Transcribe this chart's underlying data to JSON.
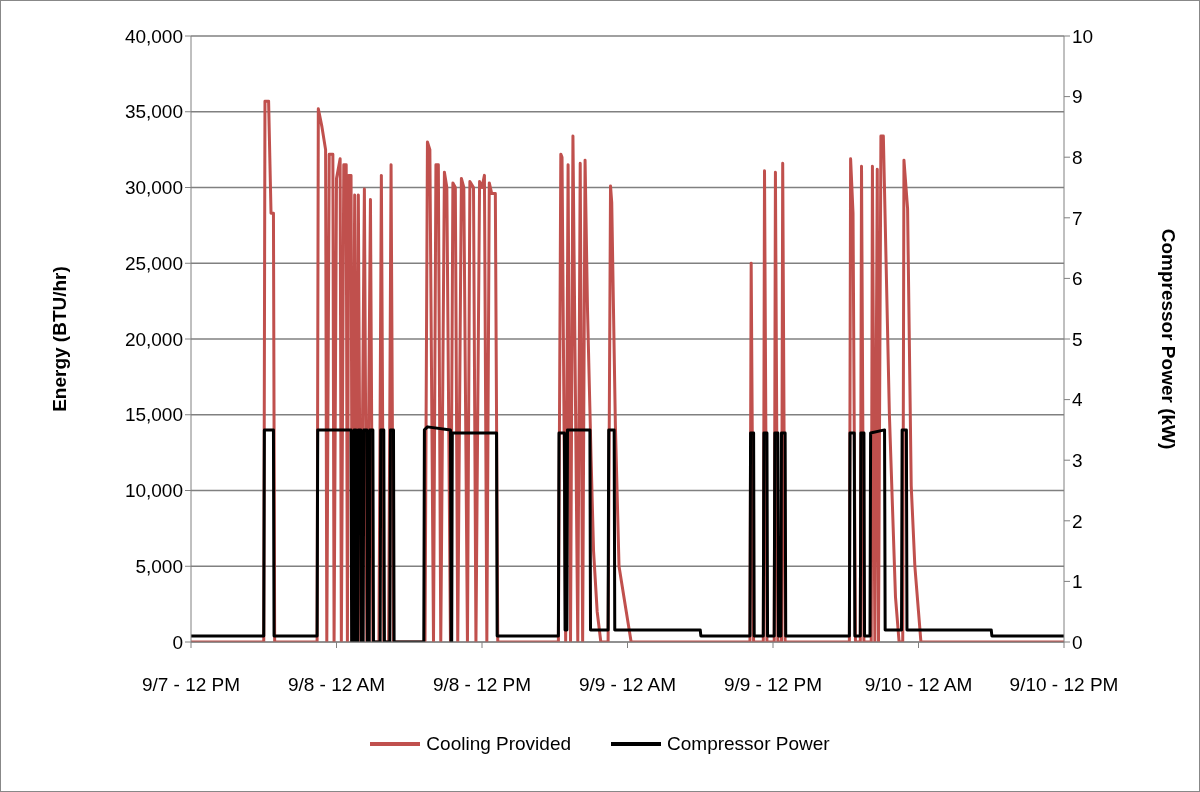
{
  "chart_data": {
    "type": "line",
    "ylabel": "Energy (BTU/hr)",
    "y2label": "Compressor Power (kW)",
    "xlim": [
      "--09-07T12:00",
      "--09-10T12:00"
    ],
    "xticks": [
      {
        "value": "--09-07T12:00",
        "label": "9/7 - 12 PM"
      },
      {
        "value": "--09-08T00:00",
        "label": "9/8 - 12 AM"
      },
      {
        "value": "--09-08T12:00",
        "label": "9/8 - 12 PM"
      },
      {
        "value": "--09-09T00:00",
        "label": "9/9 - 12 AM"
      },
      {
        "value": "--09-09T12:00",
        "label": "9/9 - 12 PM"
      },
      {
        "value": "--09-10T00:00",
        "label": "9/10 - 12 AM"
      },
      {
        "value": "--09-10T12:00",
        "label": "9/10 - 12 PM"
      }
    ],
    "ylim": [
      0,
      40000
    ],
    "yticks": [
      0,
      {
        "value": 5000,
        "label": "5,000"
      },
      {
        "value": 10000,
        "label": "10,000"
      },
      {
        "value": 15000,
        "label": "15,000"
      },
      {
        "value": 20000,
        "label": "20,000"
      },
      {
        "value": 25000,
        "label": "25,000"
      },
      {
        "value": 30000,
        "label": "30,000"
      },
      {
        "value": 35000,
        "label": "35,000"
      },
      {
        "value": 40000,
        "label": "40,000"
      }
    ],
    "y2lim": [
      0,
      10
    ],
    "y2ticks": [
      0,
      1,
      2,
      3,
      4,
      5,
      6,
      7,
      8,
      9,
      10
    ],
    "grid": "y",
    "legend": "bottom",
    "series": [
      {
        "name": "Cooling Provided",
        "color": "#c0504d",
        "x": [
          "--09-07T12:00",
          "--09-07T18:00",
          "--09-07T18:06",
          "--09-07T18:24",
          "--09-07T18:36",
          "--09-07T18:48",
          "--09-07T18:54",
          "--09-07T22:24",
          "--09-07T22:30",
          "--09-07T22:48",
          "--09-07T23:06",
          "--09-07T23:12",
          "--09-07T23:24",
          "--09-07T23:42",
          "--09-07T23:48",
          "--09-08T00:00",
          "--09-08T00:18",
          "--09-08T00:24",
          "--09-08T00:36",
          "--09-08T00:48",
          "--09-08T00:54",
          "--09-08T01:00",
          "--09-08T01:12",
          "--09-08T01:18",
          "--09-08T01:30",
          "--09-08T01:36",
          "--09-08T01:48",
          "--09-08T02:00",
          "--09-08T02:18",
          "--09-08T02:30",
          "--09-08T02:48",
          "--09-08T03:00",
          "--09-08T03:30",
          "--09-08T03:42",
          "--09-08T03:54",
          "--09-08T04:18",
          "--09-08T04:30",
          "--09-08T04:42",
          "--09-08T07:18",
          "--09-08T07:30",
          "--09-08T07:42",
          "--09-08T08:00",
          "--09-08T08:12",
          "--09-08T08:24",
          "--09-08T08:36",
          "--09-08T08:54",
          "--09-08T09:06",
          "--09-08T09:24",
          "--09-08T09:36",
          "--09-08T09:48",
          "--09-08T10:00",
          "--09-08T10:18",
          "--09-08T10:30",
          "--09-08T10:48",
          "--09-08T11:00",
          "--09-08T11:18",
          "--09-08T11:30",
          "--09-08T11:48",
          "--09-08T12:00",
          "--09-08T12:12",
          "--09-08T12:24",
          "--09-08T12:36",
          "--09-08T12:48",
          "--09-08T13:06",
          "--09-08T13:18",
          "--09-08T18:18",
          "--09-08T18:30",
          "--09-08T18:36",
          "--09-08T18:54",
          "--09-08T19:06",
          "--09-08T19:18",
          "--09-08T19:30",
          "--09-08T19:54",
          "--09-08T20:06",
          "--09-08T20:18",
          "--09-08T20:30",
          "--09-08T20:42",
          "--09-08T21:00",
          "--09-08T21:12",
          "--09-08T21:30",
          "--09-08T21:48",
          "--09-08T22:24",
          "--09-08T22:36",
          "--09-08T22:42",
          "--09-08T23:00",
          "--09-08T23:18",
          "--09-08T23:54",
          "--09-09T00:18",
          "--09-09T10:06",
          "--09-09T10:12",
          "--09-09T10:24",
          "--09-09T11:12",
          "--09-09T11:18",
          "--09-09T11:30",
          "--09-09T12:06",
          "--09-09T12:12",
          "--09-09T12:24",
          "--09-09T12:42",
          "--09-09T12:48",
          "--09-09T13:00",
          "--09-09T18:18",
          "--09-09T18:24",
          "--09-09T18:36",
          "--09-09T18:48",
          "--09-09T19:12",
          "--09-09T19:18",
          "--09-09T19:30",
          "--09-09T20:06",
          "--09-09T20:12",
          "--09-09T20:24",
          "--09-09T20:36",
          "--09-09T20:42",
          "--09-09T20:54",
          "--09-09T21:06",
          "--09-09T21:36",
          "--09-09T22:06",
          "--09-09T22:24",
          "--09-09T22:42",
          "--09-09T22:48",
          "--09-09T23:06",
          "--09-09T23:24",
          "--09-09T23:42",
          "--09-10T00:00",
          "--09-10T00:12",
          "--09-10T12:00"
        ],
        "values": [
          0,
          0,
          35700,
          35700,
          28300,
          28300,
          0,
          0,
          35200,
          34000,
          32500,
          0,
          32200,
          32200,
          0,
          30600,
          31900,
          0,
          31500,
          31500,
          0,
          30800,
          30800,
          0,
          29500,
          0,
          29500,
          0,
          29900,
          0,
          29200,
          0,
          0,
          30800,
          0,
          0,
          31500,
          0,
          0,
          33000,
          32500,
          0,
          31500,
          31500,
          0,
          31000,
          30000,
          0,
          30300,
          30000,
          0,
          30600,
          30000,
          0,
          30400,
          30000,
          0,
          30400,
          30000,
          30800,
          0,
          30300,
          29600,
          29600,
          0,
          0,
          32200,
          32000,
          0,
          31500,
          0,
          33400,
          0,
          31600,
          0,
          31800,
          22000,
          12000,
          6000,
          2000,
          0,
          0,
          30100,
          29000,
          14300,
          5000,
          2000,
          0,
          0,
          25000,
          0,
          0,
          31100,
          0,
          0,
          31000,
          0,
          0,
          31600,
          0,
          0,
          31900,
          28300,
          0,
          0,
          31400,
          0,
          0,
          31400,
          0,
          31200,
          0,
          33400,
          33400,
          15000,
          3000,
          0,
          0,
          31800,
          28600,
          10300,
          5000,
          2000,
          0,
          0
        ]
      },
      {
        "name": "Compressor Power",
        "color": "#000000",
        "axis": "y2",
        "x": [
          "--09-07T12:00",
          "--09-07T18:00",
          "--09-07T18:03",
          "--09-07T18:48",
          "--09-07T18:51",
          "--09-07T22:24",
          "--09-07T22:27",
          "--09-08T01:12",
          "--09-08T01:15",
          "--09-08T01:24",
          "--09-08T01:27",
          "--09-08T01:36",
          "--09-08T01:39",
          "--09-08T01:45",
          "--09-08T01:48",
          "--09-08T02:00",
          "--09-08T02:03",
          "--09-08T02:12",
          "--09-08T02:15",
          "--09-08T02:30",
          "--09-08T02:33",
          "--09-08T02:42",
          "--09-08T02:45",
          "--09-08T03:00",
          "--09-08T03:03",
          "--09-08T03:36",
          "--09-08T03:39",
          "--09-08T03:54",
          "--09-08T03:57",
          "--09-08T04:24",
          "--09-08T04:27",
          "--09-08T04:42",
          "--09-08T04:45",
          "--09-08T07:12",
          "--09-08T07:15",
          "--09-08T07:30",
          "--09-08T09:24",
          "--09-08T09:27",
          "--09-08T09:30",
          "--09-08T09:33",
          "--09-08T13:12",
          "--09-08T13:15",
          "--09-08T18:18",
          "--09-08T18:21",
          "--09-08T18:48",
          "--09-08T18:51",
          "--09-08T19:00",
          "--09-08T19:03",
          "--09-08T20:54",
          "--09-08T20:57",
          "--09-08T22:24",
          "--09-08T22:27",
          "--09-08T22:54",
          "--09-08T22:57",
          "--09-09T06:00",
          "--09-09T06:03",
          "--09-09T10:06",
          "--09-09T10:09",
          "--09-09T10:24",
          "--09-09T10:27",
          "--09-09T11:12",
          "--09-09T11:15",
          "--09-09T11:30",
          "--09-09T11:33",
          "--09-09T12:06",
          "--09-09T12:09",
          "--09-09T12:24",
          "--09-09T12:27",
          "--09-09T12:39",
          "--09-09T12:42",
          "--09-09T13:00",
          "--09-09T13:03",
          "--09-09T18:18",
          "--09-09T18:21",
          "--09-09T18:42",
          "--09-09T18:45",
          "--09-09T19:12",
          "--09-09T19:15",
          "--09-09T19:30",
          "--09-09T19:33",
          "--09-09T20:00",
          "--09-09T20:03",
          "--09-09T21:12",
          "--09-09T21:15",
          "--09-09T22:36",
          "--09-09T22:39",
          "--09-09T23:00",
          "--09-09T23:03",
          "--09-10T06:00",
          "--09-10T06:03",
          "--09-10T12:00"
        ],
        "values": [
          0.1,
          0.1,
          3.5,
          3.5,
          0.1,
          0.1,
          3.5,
          3.5,
          0,
          0,
          3.5,
          3.5,
          0,
          0,
          3.5,
          3.5,
          0,
          0,
          3.5,
          3.5,
          0,
          0,
          3.5,
          3.5,
          0,
          0,
          3.5,
          3.5,
          0,
          0,
          3.5,
          3.5,
          0,
          0,
          3.5,
          3.55,
          3.5,
          0,
          0,
          3.45,
          3.45,
          0.1,
          0.1,
          3.45,
          3.45,
          0.2,
          0.2,
          3.5,
          3.5,
          0.2,
          0.2,
          3.5,
          3.5,
          0.2,
          0.2,
          0.1,
          0.1,
          3.45,
          3.45,
          0.1,
          0.1,
          3.45,
          3.45,
          0.1,
          0.1,
          3.45,
          3.45,
          0.1,
          0.1,
          3.45,
          3.45,
          0.1,
          0.1,
          3.45,
          3.45,
          0.1,
          0.1,
          3.45,
          3.45,
          0.1,
          0.1,
          3.45,
          3.5,
          0.2,
          0.2,
          3.5,
          3.5,
          0.2,
          0.2,
          0.1,
          0.1
        ]
      }
    ]
  }
}
